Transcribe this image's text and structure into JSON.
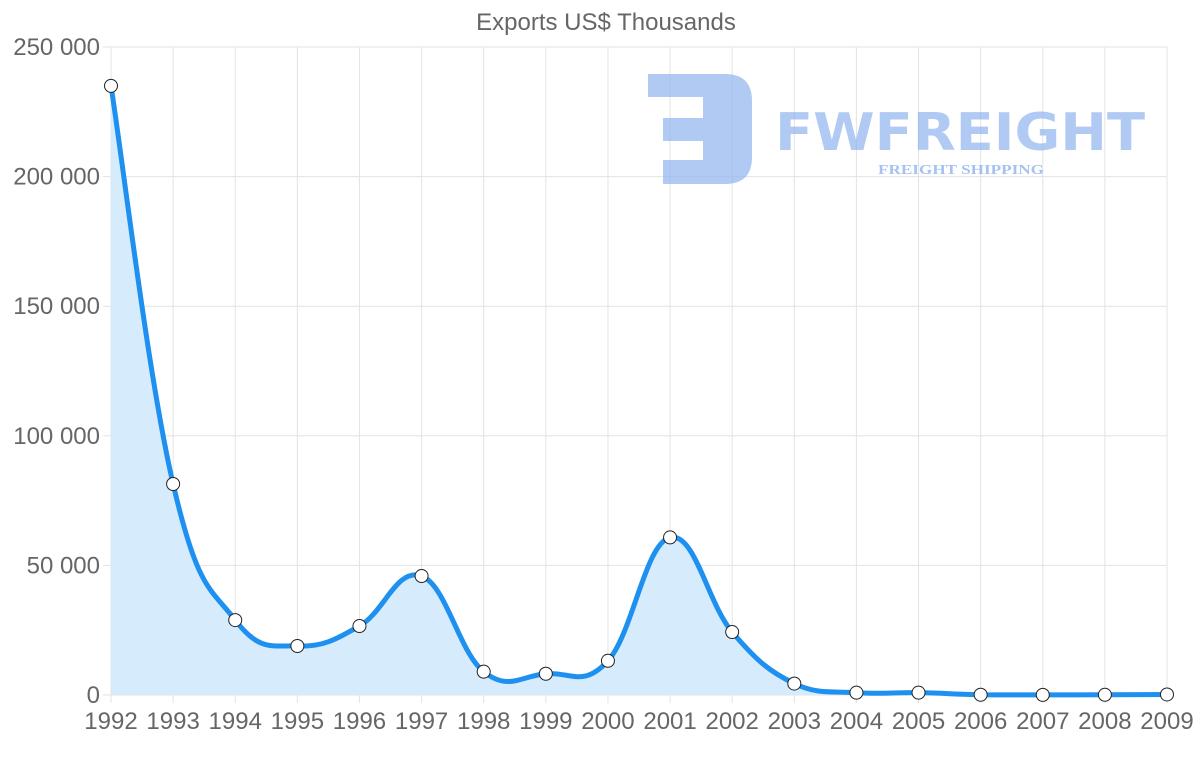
{
  "chart_data": {
    "type": "line",
    "title": "Exports US$ Thousands",
    "xlabel": "",
    "ylabel": "",
    "categories": [
      "1992",
      "1993",
      "1994",
      "1995",
      "1996",
      "1997",
      "1998",
      "1999",
      "2000",
      "2001",
      "2002",
      "2003",
      "2004",
      "2005",
      "2006",
      "2007",
      "2008",
      "2009"
    ],
    "series": [
      {
        "name": "Exports US$ Thousands",
        "values": [
          235000,
          81400,
          28900,
          18900,
          26600,
          45900,
          9000,
          8200,
          13200,
          60800,
          24300,
          4400,
          900,
          900,
          100,
          50,
          80,
          200
        ],
        "color": "#1e90f0",
        "fill": "#d6ebfb"
      }
    ],
    "ylim": [
      0,
      250000
    ],
    "yticks": [
      0,
      50000,
      100000,
      150000,
      200000,
      250000
    ],
    "ytick_labels": [
      "0",
      "50 000",
      "100 000",
      "150 000",
      "200 000",
      "250 000"
    ],
    "grid": true,
    "legend": null
  },
  "watermark": {
    "brand": "FWFREIGHT",
    "tagline": "FREIGHT SHIPPING"
  }
}
